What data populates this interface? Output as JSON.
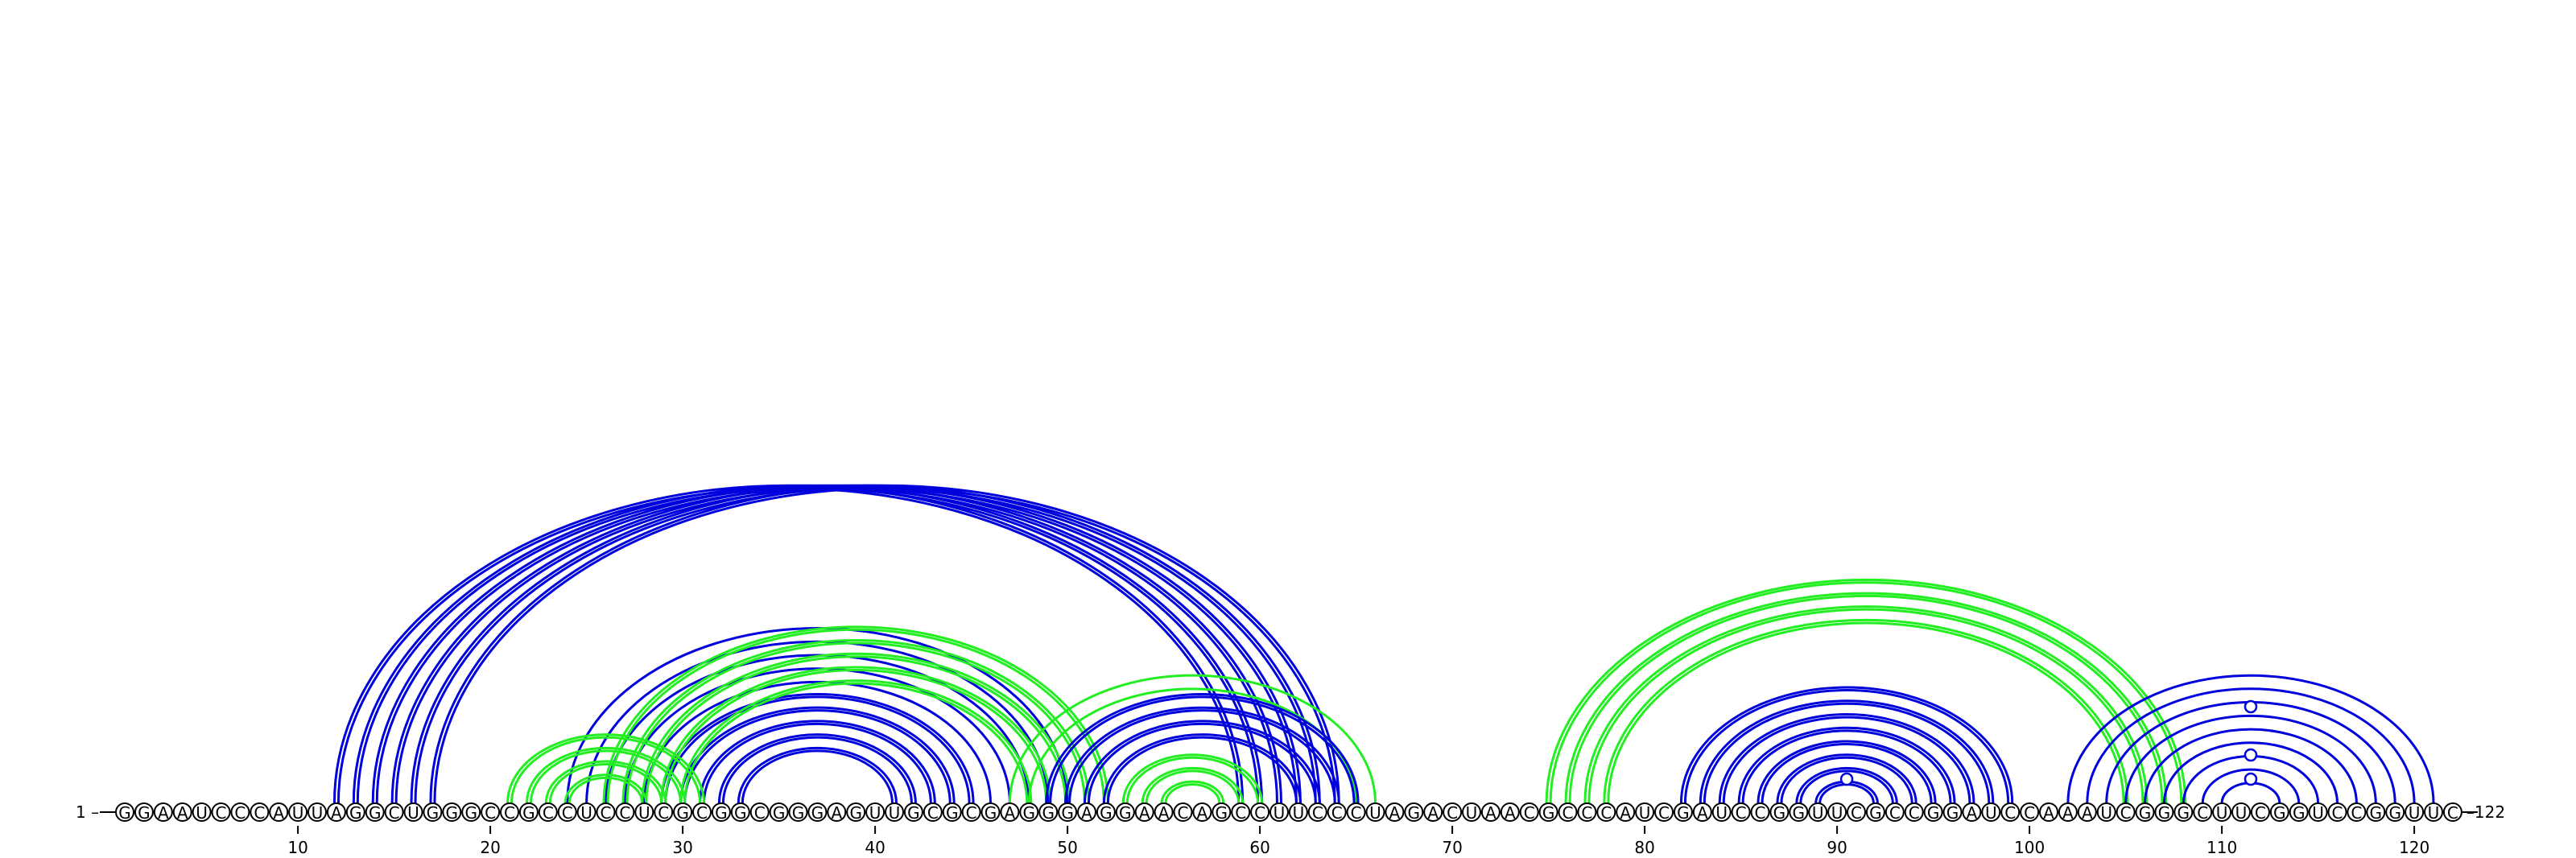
{
  "diagram": {
    "type": "arc-diagram",
    "sequence": "GGAAUCCCAUUAGGCUGGGCCGCCUCCUCGCGGCGGGAGUUGCGCGAGGGAGGAACAGCCUUCCCUAGACUAACGCCCAUCGAUCCGGUUCGCCGGAUCCAAAUCGGGCUUCGGUCCGGUUC",
    "start_label": "1 –",
    "end_label": "–122",
    "ticks": [
      10,
      20,
      30,
      40,
      50,
      60,
      70,
      80,
      90,
      100,
      110,
      120
    ],
    "colors": {
      "blue": "#0000dd",
      "green": "#22ee22"
    },
    "arc_groups": [
      {
        "color": "blue",
        "pairs": [
          [
            12,
            59
          ],
          [
            13,
            60
          ],
          [
            14,
            61
          ],
          [
            15,
            62
          ],
          [
            16,
            63
          ],
          [
            17,
            64
          ]
        ],
        "double": true
      },
      {
        "color": "blue",
        "pairs": [
          [
            24,
            50
          ],
          [
            25,
            49
          ],
          [
            26,
            48
          ],
          [
            27,
            47
          ],
          [
            28,
            46
          ]
        ],
        "double": false
      },
      {
        "color": "blue",
        "pairs": [
          [
            29,
            45
          ],
          [
            30,
            44
          ],
          [
            31,
            43
          ],
          [
            32,
            42
          ],
          [
            33,
            41
          ]
        ],
        "double": true
      },
      {
        "color": "green",
        "pairs": [
          [
            21,
            31
          ],
          [
            22,
            30
          ],
          [
            23,
            29
          ],
          [
            24,
            28
          ]
        ],
        "double": true
      },
      {
        "color": "green",
        "pairs": [
          [
            26,
            52
          ],
          [
            27,
            51
          ],
          [
            28,
            50
          ],
          [
            29,
            49
          ],
          [
            30,
            48
          ]
        ],
        "double": true
      },
      {
        "color": "green",
        "pairs": [
          [
            47,
            66
          ],
          [
            48,
            65
          ]
        ],
        "double": false
      },
      {
        "color": "blue",
        "pairs": [
          [
            49,
            65
          ],
          [
            50,
            64
          ],
          [
            51,
            63
          ],
          [
            52,
            62
          ]
        ],
        "double": true
      },
      {
        "color": "green",
        "pairs": [
          [
            53,
            60
          ],
          [
            54,
            59
          ],
          [
            55,
            58
          ]
        ],
        "double": true
      },
      {
        "color": "green",
        "pairs": [
          [
            75,
            108
          ],
          [
            76,
            107
          ],
          [
            77,
            106
          ],
          [
            78,
            105
          ]
        ],
        "double": true
      },
      {
        "color": "blue",
        "pairs": [
          [
            82,
            99
          ],
          [
            83,
            98
          ],
          [
            84,
            97
          ],
          [
            85,
            96
          ],
          [
            86,
            95
          ],
          [
            87,
            94
          ],
          [
            88,
            93
          ],
          [
            89,
            92
          ]
        ],
        "double": true
      },
      {
        "color": "blue",
        "pairs": [
          [
            102,
            121
          ],
          [
            103,
            120
          ],
          [
            104,
            119
          ],
          [
            105,
            118
          ],
          [
            106,
            117
          ],
          [
            107,
            116
          ],
          [
            108,
            115
          ],
          [
            109,
            114
          ],
          [
            110,
            113
          ]
        ],
        "double": false
      }
    ],
    "markers": [
      {
        "color": "blue",
        "position": 90.5,
        "level": 1
      },
      {
        "color": "blue",
        "position": 111.5,
        "level": 1
      },
      {
        "color": "blue",
        "position": 111.5,
        "level": 2
      },
      {
        "color": "blue",
        "position": 111.5,
        "level": 4
      }
    ]
  }
}
